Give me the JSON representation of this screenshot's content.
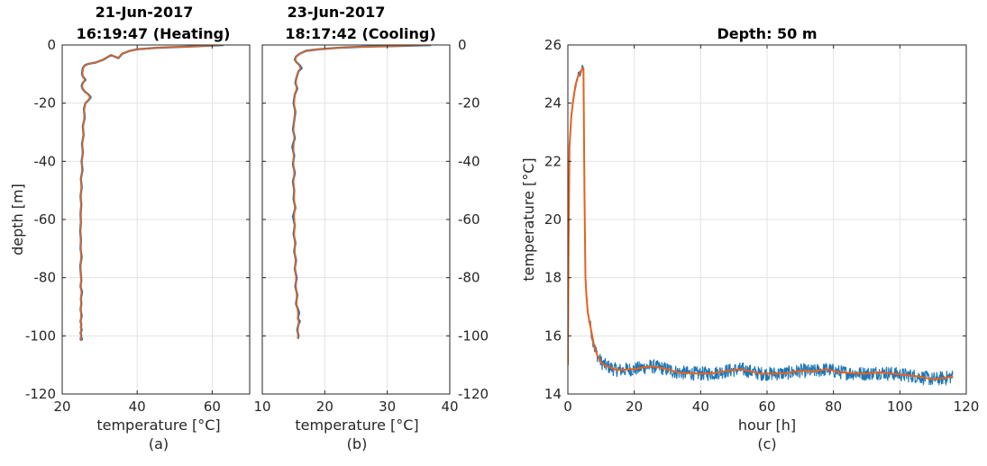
{
  "colors": {
    "raw": "#1f77b4",
    "smooth": "#e8601c",
    "grid": "#e3e3e3",
    "axis": "#262626"
  },
  "chart_data": [
    {
      "type": "line",
      "title_line1": "21-Jun-2017",
      "title_line2": "16:19:47 (Heating)",
      "xlabel": "temperature [°C]",
      "ylabel": "depth [m]",
      "caption": "(a)",
      "xlim": [
        20,
        70
      ],
      "ylim": [
        -120,
        0
      ],
      "xticks": [
        20,
        40,
        60
      ],
      "yticks": [
        -120,
        -100,
        -80,
        -60,
        -40,
        -20,
        0
      ],
      "grid": true,
      "y_tick_side": "left",
      "series": [
        {
          "role": "raw",
          "x": [
            63,
            55,
            45,
            40,
            38,
            36,
            35,
            33,
            31,
            29,
            27,
            26,
            25.5,
            25.3,
            25.6,
            26.2,
            25.5,
            25.2,
            25.4,
            26.0,
            27.0,
            27.6,
            27.0,
            26.2,
            25.8,
            26.0,
            25.5,
            25.7,
            25.3,
            25.5,
            25.2,
            25.4,
            25.0,
            25.2,
            24.9,
            25.1,
            24.9,
            25.0,
            24.8,
            25.0,
            24.9,
            25.2,
            24.8,
            25.0,
            25.1,
            24.9,
            25.3,
            25.0,
            25.1,
            24.9,
            25.2,
            24.9,
            25.1,
            25.0,
            25.2,
            24.9,
            25.1,
            25.0,
            25.2,
            24.9,
            25.3,
            25.0,
            25.1
          ],
          "y": [
            0,
            -0.5,
            -1,
            -1.5,
            -2,
            -3,
            -4.5,
            -3.5,
            -5,
            -6,
            -6.5,
            -7,
            -8,
            -10,
            -11,
            -12,
            -13,
            -14,
            -15,
            -16,
            -17,
            -18,
            -19,
            -20,
            -22,
            -25,
            -28,
            -31,
            -34,
            -37,
            -40,
            -43,
            -46,
            -49,
            -52,
            -55,
            -58,
            -61,
            -64,
            -67,
            -70,
            -73,
            -76,
            -79,
            -81,
            -83,
            -85,
            -87,
            -89,
            -91,
            -93,
            -95,
            -96,
            -97,
            -98,
            -99,
            -100,
            -100.5,
            -100.8,
            -101,
            -101.2,
            -101.4,
            -101.5
          ]
        },
        {
          "role": "smooth",
          "x": [
            63,
            55,
            45,
            40,
            38,
            36,
            35,
            33,
            31,
            29,
            27,
            26,
            25.6,
            25.4,
            25.6,
            26.0,
            25.6,
            25.3,
            25.5,
            26.0,
            26.9,
            27.4,
            26.9,
            26.2,
            25.9,
            25.9,
            25.6,
            25.6,
            25.4,
            25.4,
            25.3,
            25.3,
            25.1,
            25.1,
            25.0,
            25.0,
            25.0,
            25.0,
            24.9,
            24.9,
            25.0,
            25.0,
            24.9,
            25.0,
            25.0,
            25.0,
            25.1,
            25.0,
            25.0,
            25.0,
            25.0,
            25.0,
            25.0,
            25.0,
            25.0,
            25.0,
            25.0,
            25.0,
            25.0,
            25.0,
            25.1,
            25.0,
            25.0
          ],
          "y": [
            0,
            -0.5,
            -1,
            -1.5,
            -2,
            -3,
            -4.5,
            -3.5,
            -5,
            -6,
            -6.5,
            -7,
            -8,
            -10,
            -11,
            -12,
            -13,
            -14,
            -15,
            -16,
            -17,
            -18,
            -19,
            -20,
            -22,
            -25,
            -28,
            -31,
            -34,
            -37,
            -40,
            -43,
            -46,
            -49,
            -52,
            -55,
            -58,
            -61,
            -64,
            -67,
            -70,
            -73,
            -76,
            -79,
            -81,
            -83,
            -85,
            -87,
            -89,
            -91,
            -93,
            -95,
            -96,
            -97,
            -98,
            -99,
            -100,
            -100.5,
            -100.8,
            -101,
            -101.2,
            -101.4,
            -101.5
          ]
        }
      ]
    },
    {
      "type": "line",
      "title_line1": "23-Jun-2017",
      "title_line2": "18:17:42 (Cooling)",
      "xlabel": "temperature [°C]",
      "ylabel": "",
      "caption": "(b)",
      "xlim": [
        10,
        40
      ],
      "ylim": [
        -120,
        0
      ],
      "xticks": [
        10,
        20,
        30,
        40
      ],
      "yticks": [
        -120,
        -100,
        -80,
        -60,
        -40,
        -20,
        0
      ],
      "grid": true,
      "y_tick_side": "right",
      "series": [
        {
          "role": "raw",
          "x": [
            37,
            32,
            26,
            22,
            19,
            17,
            16,
            15.4,
            15.2,
            15.5,
            16.0,
            16.3,
            15.8,
            15.5,
            15.3,
            15.6,
            15.2,
            15.0,
            15.3,
            15.1,
            14.9,
            15.2,
            14.8,
            15.1,
            14.9,
            15.2,
            14.9,
            15.1,
            15.0,
            15.3,
            14.9,
            15.2,
            15.0,
            15.3,
            15.1,
            15.4,
            15.2,
            15.5,
            15.3,
            15.6,
            15.4,
            15.9,
            15.7,
            16.0,
            15.8,
            15.6,
            15.8,
            15.7
          ],
          "y": [
            0,
            -0.3,
            -0.6,
            -1,
            -1.5,
            -2,
            -3,
            -4,
            -5,
            -6,
            -7,
            -8,
            -9,
            -11,
            -13,
            -15,
            -17,
            -20,
            -23,
            -26,
            -29,
            -32,
            -35,
            -38,
            -41,
            -44,
            -47,
            -50,
            -53,
            -56,
            -59,
            -62,
            -65,
            -68,
            -71,
            -74,
            -77,
            -80,
            -83,
            -86,
            -89,
            -92,
            -94,
            -95,
            -96,
            -98,
            -100,
            -101
          ]
        },
        {
          "role": "smooth",
          "x": [
            37,
            32,
            26,
            22,
            19,
            17,
            16,
            15.4,
            15.3,
            15.5,
            15.9,
            16.1,
            15.8,
            15.5,
            15.4,
            15.5,
            15.2,
            15.1,
            15.2,
            15.1,
            15.0,
            15.1,
            15.0,
            15.0,
            15.0,
            15.1,
            15.0,
            15.1,
            15.1,
            15.2,
            15.1,
            15.2,
            15.1,
            15.2,
            15.2,
            15.3,
            15.3,
            15.4,
            15.4,
            15.5,
            15.5,
            15.7,
            15.7,
            15.8,
            15.8,
            15.7,
            15.7,
            15.7
          ],
          "y": [
            0,
            -0.3,
            -0.6,
            -1,
            -1.5,
            -2,
            -3,
            -4,
            -5,
            -6,
            -7,
            -8,
            -9,
            -11,
            -13,
            -15,
            -17,
            -20,
            -23,
            -26,
            -29,
            -32,
            -35,
            -38,
            -41,
            -44,
            -47,
            -50,
            -53,
            -56,
            -59,
            -62,
            -65,
            -68,
            -71,
            -74,
            -77,
            -80,
            -83,
            -86,
            -89,
            -92,
            -94,
            -95,
            -96,
            -98,
            -100,
            -101
          ]
        }
      ]
    },
    {
      "type": "line",
      "title": "Depth: 50 m",
      "xlabel": "hour [h]",
      "ylabel": "temperature [°C]",
      "caption": "(c)",
      "xlim": [
        0,
        120
      ],
      "ylim": [
        14,
        26
      ],
      "xticks": [
        0,
        20,
        40,
        60,
        80,
        100,
        120
      ],
      "yticks": [
        14,
        16,
        18,
        20,
        22,
        24,
        26
      ],
      "grid": true,
      "y_tick_side": "left",
      "raw_noise_amplitude": 0.25,
      "series": [
        {
          "role": "smooth",
          "x": [
            0,
            0.2,
            0.5,
            1,
            1.5,
            2,
            2.5,
            3,
            3.5,
            4,
            4.4,
            4.7,
            5,
            5.3,
            5.6,
            6,
            7,
            8,
            9,
            10,
            11,
            12,
            14,
            16,
            18,
            20,
            22,
            25,
            28,
            30,
            33,
            36,
            40,
            44,
            48,
            52,
            55,
            58,
            62,
            66,
            70,
            74,
            78,
            82,
            86,
            90,
            94,
            98,
            102,
            106,
            110,
            113,
            116
          ],
          "y": [
            15.0,
            18.8,
            22.5,
            23.5,
            24.0,
            24.4,
            24.7,
            24.9,
            25.0,
            25.1,
            25.2,
            25.2,
            21.0,
            18.0,
            17.4,
            16.8,
            16.2,
            15.6,
            15.3,
            15.1,
            15.0,
            14.95,
            14.85,
            14.82,
            14.85,
            14.85,
            14.9,
            14.95,
            14.9,
            14.85,
            14.75,
            14.72,
            14.7,
            14.72,
            14.8,
            14.85,
            14.78,
            14.7,
            14.7,
            14.72,
            14.8,
            14.78,
            14.85,
            14.75,
            14.72,
            14.7,
            14.75,
            14.7,
            14.65,
            14.6,
            14.5,
            14.55,
            14.6
          ]
        }
      ]
    }
  ]
}
